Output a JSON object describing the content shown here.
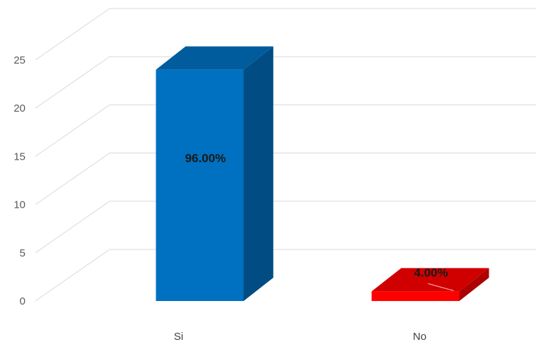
{
  "chart_data": {
    "type": "bar",
    "style": "3d-column",
    "categories": [
      "Si",
      "No"
    ],
    "values": [
      24,
      1
    ],
    "data_labels": [
      "96.00%",
      "4.00%"
    ],
    "yticks": [
      0,
      5,
      10,
      15,
      20,
      25
    ],
    "ylim": [
      0,
      25
    ],
    "grid": true,
    "colors": [
      "#0070c0",
      "#ff0000"
    ]
  }
}
